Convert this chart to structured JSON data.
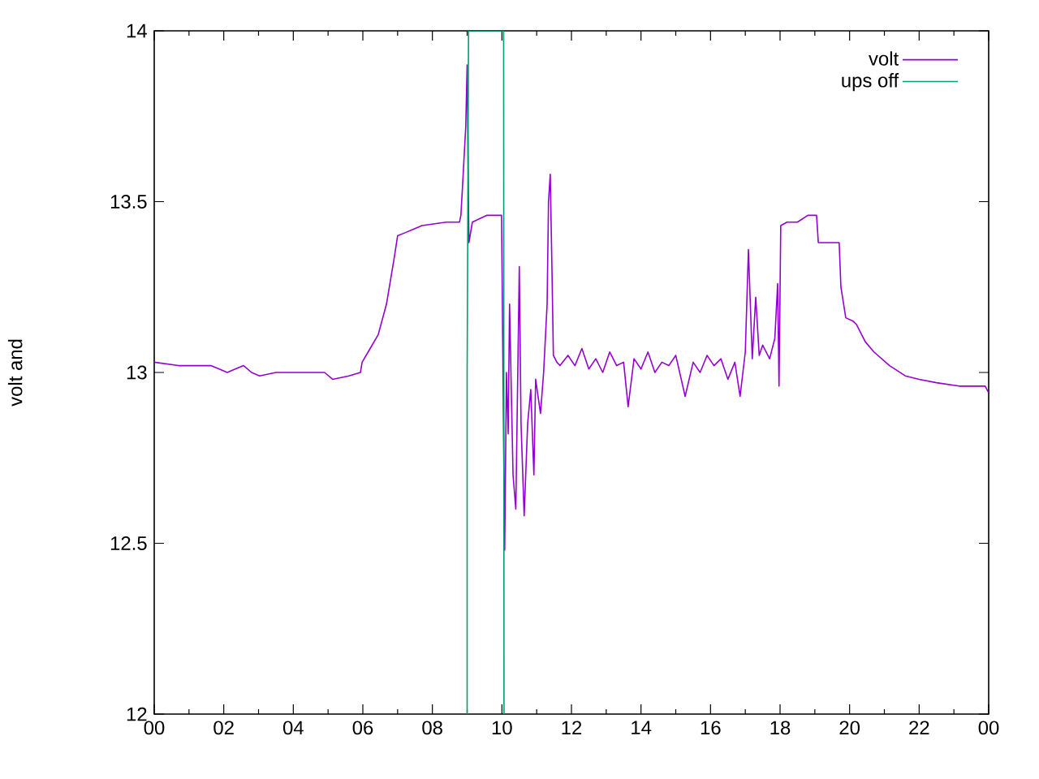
{
  "chart_data": {
    "type": "line",
    "ylabel": "volt and",
    "xlim": [
      0,
      24
    ],
    "ylim": [
      12,
      14
    ],
    "xticks": [
      {
        "value": 0,
        "label": "00"
      },
      {
        "value": 2,
        "label": "02"
      },
      {
        "value": 4,
        "label": "04"
      },
      {
        "value": 6,
        "label": "06"
      },
      {
        "value": 8,
        "label": "08"
      },
      {
        "value": 10,
        "label": "10"
      },
      {
        "value": 12,
        "label": "12"
      },
      {
        "value": 14,
        "label": "14"
      },
      {
        "value": 16,
        "label": "16"
      },
      {
        "value": 18,
        "label": "18"
      },
      {
        "value": 20,
        "label": "20"
      },
      {
        "value": 22,
        "label": "22"
      },
      {
        "value": 24,
        "label": "00"
      }
    ],
    "yticks": [
      12,
      12.5,
      13,
      13.5,
      14
    ],
    "legend": "top right",
    "series": [
      {
        "name": "volt",
        "color": "#9400d3",
        "x": [
          0,
          0.7,
          1.63,
          1.87,
          2.1,
          2.33,
          2.57,
          2.8,
          3.03,
          3.5,
          4.43,
          4.9,
          5.13,
          5.6,
          5.93,
          5.98,
          6.21,
          6.44,
          6.68,
          6.91,
          7.0,
          7.24,
          7.7,
          8.4,
          8.78,
          8.82,
          8.87,
          8.96,
          9.0,
          9.05,
          9.15,
          9.57,
          9.99,
          10.04,
          10.08,
          10.13,
          10.18,
          10.22,
          10.32,
          10.4,
          10.5,
          10.55,
          10.64,
          10.74,
          10.83,
          10.92,
          10.97,
          11.11,
          11.2,
          11.3,
          11.34,
          11.39,
          11.44,
          11.48,
          11.58,
          11.67,
          11.9,
          12.1,
          12.3,
          12.5,
          12.7,
          12.9,
          13.1,
          13.3,
          13.5,
          13.63,
          13.8,
          14.0,
          14.2,
          14.4,
          14.6,
          14.8,
          15.0,
          15.27,
          15.5,
          15.7,
          15.9,
          16.1,
          16.3,
          16.5,
          16.7,
          16.85,
          17.0,
          17.09,
          17.2,
          17.3,
          17.4,
          17.5,
          17.7,
          17.85,
          17.93,
          17.97,
          18.02,
          18.2,
          18.5,
          18.8,
          19.05,
          19.1,
          19.7,
          19.75,
          19.89,
          20.1,
          20.2,
          20.45,
          20.7,
          21.15,
          21.6,
          22.0,
          22.5,
          23.15,
          23.9,
          24
        ],
        "values": [
          13.03,
          13.02,
          13.02,
          13.01,
          13.0,
          13.01,
          13.02,
          13.0,
          12.99,
          13.0,
          13.0,
          13.0,
          12.98,
          12.99,
          13.0,
          13.03,
          13.07,
          13.11,
          13.2,
          13.34,
          13.4,
          13.41,
          13.43,
          13.44,
          13.44,
          13.46,
          13.55,
          13.72,
          13.9,
          13.38,
          13.44,
          13.46,
          13.46,
          12.9,
          12.48,
          13.0,
          12.82,
          13.2,
          12.7,
          12.6,
          13.31,
          12.85,
          12.58,
          12.85,
          12.95,
          12.7,
          12.98,
          12.88,
          13.0,
          13.2,
          13.5,
          13.58,
          13.3,
          13.05,
          13.03,
          13.02,
          13.05,
          13.02,
          13.07,
          13.01,
          13.04,
          13.0,
          13.06,
          13.02,
          13.03,
          12.9,
          13.04,
          13.01,
          13.06,
          13.0,
          13.03,
          13.02,
          13.05,
          12.93,
          13.03,
          13.0,
          13.05,
          13.02,
          13.04,
          12.98,
          13.03,
          12.93,
          13.06,
          13.36,
          13.04,
          13.22,
          13.05,
          13.08,
          13.04,
          13.1,
          13.26,
          12.96,
          13.43,
          13.44,
          13.44,
          13.46,
          13.46,
          13.38,
          13.38,
          13.25,
          13.16,
          13.15,
          13.14,
          13.09,
          13.06,
          13.02,
          12.99,
          12.98,
          12.97,
          12.96,
          12.96,
          12.94
        ]
      },
      {
        "name": "ups off",
        "color": "#009e73",
        "x": [
          9.0,
          9.0,
          9.04,
          10.05,
          10.06
        ],
        "values": [
          12,
          13.0,
          14,
          14,
          12
        ]
      }
    ]
  }
}
